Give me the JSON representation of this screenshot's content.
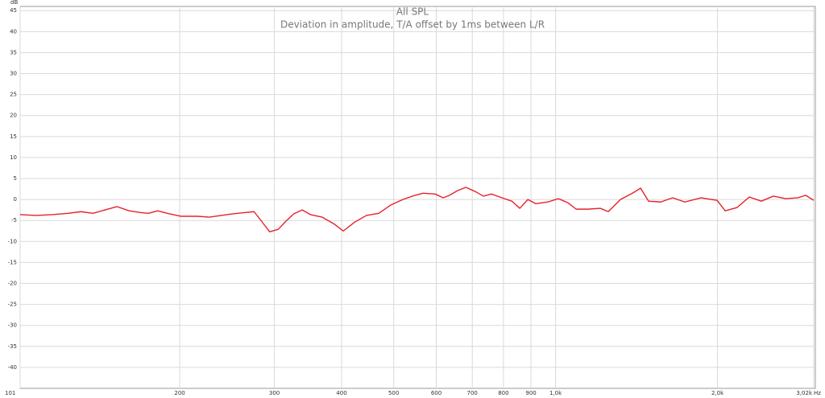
{
  "chart_data": {
    "type": "line",
    "title": "All SPL",
    "subtitle": "Deviation in amplitude, T/A offset by 1ms between L/R",
    "y_label": "dB",
    "x_label": "Hz",
    "x_log": true,
    "grid": true,
    "xlim": [
      101,
      3020
    ],
    "ylim": [
      -45,
      46
    ],
    "xticks": [
      101,
      200,
      300,
      400,
      500,
      600,
      700,
      800,
      900,
      {
        "value": 1000,
        "label": "1,0k"
      },
      {
        "value": 2000,
        "label": "2,0k"
      },
      {
        "value": 3020,
        "label": "3,02k"
      }
    ],
    "yticks": [
      45,
      40,
      35,
      30,
      25,
      20,
      15,
      10,
      5,
      0,
      -5,
      -10,
      -15,
      -20,
      -25,
      -30,
      -35,
      -40
    ],
    "x": [
      101,
      108,
      116,
      124,
      131,
      138,
      145,
      153,
      161,
      169,
      175,
      182,
      191,
      201,
      216,
      227,
      239,
      252,
      265,
      275,
      284,
      294,
      305,
      315,
      326,
      338,
      350,
      368,
      388,
      403,
      423,
      445,
      469,
      494,
      520,
      548,
      567,
      597,
      618,
      635,
      657,
      681,
      709,
      734,
      760,
      787,
      829,
      858,
      888,
      919,
      967,
      1012,
      1055,
      1092,
      1150,
      1211,
      1253,
      1320,
      1390,
      1439,
      1489,
      1568,
      1651,
      1739,
      1863,
      1997,
      2067,
      2176,
      2292,
      2413,
      2541,
      2677,
      2819,
      2918,
      3020
    ],
    "series": [
      {
        "name": "Deviation",
        "color": "#e8202a",
        "values": [
          -3.6,
          -3.8,
          -3.6,
          -3.3,
          -2.9,
          -3.3,
          -2.5,
          -1.7,
          -2.7,
          -3.1,
          -3.3,
          -2.7,
          -3.4,
          -4.0,
          -4.0,
          -4.2,
          -3.8,
          -3.4,
          -3.1,
          -2.9,
          -5.2,
          -7.7,
          -7.1,
          -5.2,
          -3.4,
          -2.5,
          -3.6,
          -4.2,
          -5.9,
          -7.5,
          -5.4,
          -3.8,
          -3.3,
          -1.3,
          0,
          1.0,
          1.5,
          1.3,
          0.4,
          1.0,
          2.1,
          2.9,
          1.9,
          0.8,
          1.3,
          0.6,
          -0.4,
          -2.1,
          0,
          -1.0,
          -0.6,
          0.2,
          -0.8,
          -2.3,
          -2.3,
          -2.1,
          -2.9,
          0,
          1.5,
          2.7,
          -0.4,
          -0.6,
          0.4,
          -0.6,
          0.4,
          -0.2,
          -2.7,
          -1.9,
          0.6,
          -0.4,
          0.8,
          0.2,
          0.4,
          1.0,
          -0.2
        ]
      }
    ]
  }
}
